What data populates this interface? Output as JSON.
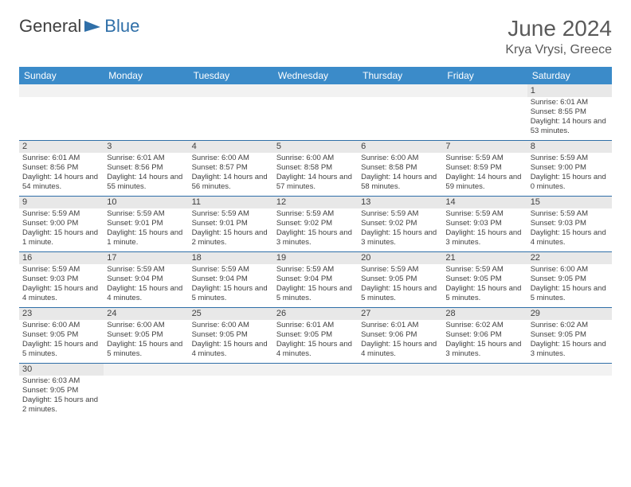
{
  "logo": {
    "text1": "General",
    "text2": "Blue"
  },
  "title": "June 2024",
  "location": "Krya Vrysi, Greece",
  "colors": {
    "header_bg": "#3b8bc9",
    "header_text": "#ffffff",
    "daynum_bg": "#e8e8e8",
    "border": "#2f6fa8",
    "text": "#404040",
    "logo_blue": "#2f6fa8"
  },
  "fonts": {
    "title_size": 28,
    "location_size": 16,
    "header_size": 12,
    "daynum_size": 11,
    "body_size": 9.5
  },
  "days": [
    "Sunday",
    "Monday",
    "Tuesday",
    "Wednesday",
    "Thursday",
    "Friday",
    "Saturday"
  ],
  "weeks": [
    [
      null,
      null,
      null,
      null,
      null,
      null,
      {
        "n": "1",
        "sunrise": "Sunrise: 6:01 AM",
        "sunset": "Sunset: 8:55 PM",
        "daylight": "Daylight: 14 hours and 53 minutes."
      }
    ],
    [
      {
        "n": "2",
        "sunrise": "Sunrise: 6:01 AM",
        "sunset": "Sunset: 8:56 PM",
        "daylight": "Daylight: 14 hours and 54 minutes."
      },
      {
        "n": "3",
        "sunrise": "Sunrise: 6:01 AM",
        "sunset": "Sunset: 8:56 PM",
        "daylight": "Daylight: 14 hours and 55 minutes."
      },
      {
        "n": "4",
        "sunrise": "Sunrise: 6:00 AM",
        "sunset": "Sunset: 8:57 PM",
        "daylight": "Daylight: 14 hours and 56 minutes."
      },
      {
        "n": "5",
        "sunrise": "Sunrise: 6:00 AM",
        "sunset": "Sunset: 8:58 PM",
        "daylight": "Daylight: 14 hours and 57 minutes."
      },
      {
        "n": "6",
        "sunrise": "Sunrise: 6:00 AM",
        "sunset": "Sunset: 8:58 PM",
        "daylight": "Daylight: 14 hours and 58 minutes."
      },
      {
        "n": "7",
        "sunrise": "Sunrise: 5:59 AM",
        "sunset": "Sunset: 8:59 PM",
        "daylight": "Daylight: 14 hours and 59 minutes."
      },
      {
        "n": "8",
        "sunrise": "Sunrise: 5:59 AM",
        "sunset": "Sunset: 9:00 PM",
        "daylight": "Daylight: 15 hours and 0 minutes."
      }
    ],
    [
      {
        "n": "9",
        "sunrise": "Sunrise: 5:59 AM",
        "sunset": "Sunset: 9:00 PM",
        "daylight": "Daylight: 15 hours and 1 minute."
      },
      {
        "n": "10",
        "sunrise": "Sunrise: 5:59 AM",
        "sunset": "Sunset: 9:01 PM",
        "daylight": "Daylight: 15 hours and 1 minute."
      },
      {
        "n": "11",
        "sunrise": "Sunrise: 5:59 AM",
        "sunset": "Sunset: 9:01 PM",
        "daylight": "Daylight: 15 hours and 2 minutes."
      },
      {
        "n": "12",
        "sunrise": "Sunrise: 5:59 AM",
        "sunset": "Sunset: 9:02 PM",
        "daylight": "Daylight: 15 hours and 3 minutes."
      },
      {
        "n": "13",
        "sunrise": "Sunrise: 5:59 AM",
        "sunset": "Sunset: 9:02 PM",
        "daylight": "Daylight: 15 hours and 3 minutes."
      },
      {
        "n": "14",
        "sunrise": "Sunrise: 5:59 AM",
        "sunset": "Sunset: 9:03 PM",
        "daylight": "Daylight: 15 hours and 3 minutes."
      },
      {
        "n": "15",
        "sunrise": "Sunrise: 5:59 AM",
        "sunset": "Sunset: 9:03 PM",
        "daylight": "Daylight: 15 hours and 4 minutes."
      }
    ],
    [
      {
        "n": "16",
        "sunrise": "Sunrise: 5:59 AM",
        "sunset": "Sunset: 9:03 PM",
        "daylight": "Daylight: 15 hours and 4 minutes."
      },
      {
        "n": "17",
        "sunrise": "Sunrise: 5:59 AM",
        "sunset": "Sunset: 9:04 PM",
        "daylight": "Daylight: 15 hours and 4 minutes."
      },
      {
        "n": "18",
        "sunrise": "Sunrise: 5:59 AM",
        "sunset": "Sunset: 9:04 PM",
        "daylight": "Daylight: 15 hours and 5 minutes."
      },
      {
        "n": "19",
        "sunrise": "Sunrise: 5:59 AM",
        "sunset": "Sunset: 9:04 PM",
        "daylight": "Daylight: 15 hours and 5 minutes."
      },
      {
        "n": "20",
        "sunrise": "Sunrise: 5:59 AM",
        "sunset": "Sunset: 9:05 PM",
        "daylight": "Daylight: 15 hours and 5 minutes."
      },
      {
        "n": "21",
        "sunrise": "Sunrise: 5:59 AM",
        "sunset": "Sunset: 9:05 PM",
        "daylight": "Daylight: 15 hours and 5 minutes."
      },
      {
        "n": "22",
        "sunrise": "Sunrise: 6:00 AM",
        "sunset": "Sunset: 9:05 PM",
        "daylight": "Daylight: 15 hours and 5 minutes."
      }
    ],
    [
      {
        "n": "23",
        "sunrise": "Sunrise: 6:00 AM",
        "sunset": "Sunset: 9:05 PM",
        "daylight": "Daylight: 15 hours and 5 minutes."
      },
      {
        "n": "24",
        "sunrise": "Sunrise: 6:00 AM",
        "sunset": "Sunset: 9:05 PM",
        "daylight": "Daylight: 15 hours and 5 minutes."
      },
      {
        "n": "25",
        "sunrise": "Sunrise: 6:00 AM",
        "sunset": "Sunset: 9:05 PM",
        "daylight": "Daylight: 15 hours and 4 minutes."
      },
      {
        "n": "26",
        "sunrise": "Sunrise: 6:01 AM",
        "sunset": "Sunset: 9:05 PM",
        "daylight": "Daylight: 15 hours and 4 minutes."
      },
      {
        "n": "27",
        "sunrise": "Sunrise: 6:01 AM",
        "sunset": "Sunset: 9:06 PM",
        "daylight": "Daylight: 15 hours and 4 minutes."
      },
      {
        "n": "28",
        "sunrise": "Sunrise: 6:02 AM",
        "sunset": "Sunset: 9:06 PM",
        "daylight": "Daylight: 15 hours and 3 minutes."
      },
      {
        "n": "29",
        "sunrise": "Sunrise: 6:02 AM",
        "sunset": "Sunset: 9:05 PM",
        "daylight": "Daylight: 15 hours and 3 minutes."
      }
    ],
    [
      {
        "n": "30",
        "sunrise": "Sunrise: 6:03 AM",
        "sunset": "Sunset: 9:05 PM",
        "daylight": "Daylight: 15 hours and 2 minutes."
      },
      null,
      null,
      null,
      null,
      null,
      null
    ]
  ]
}
